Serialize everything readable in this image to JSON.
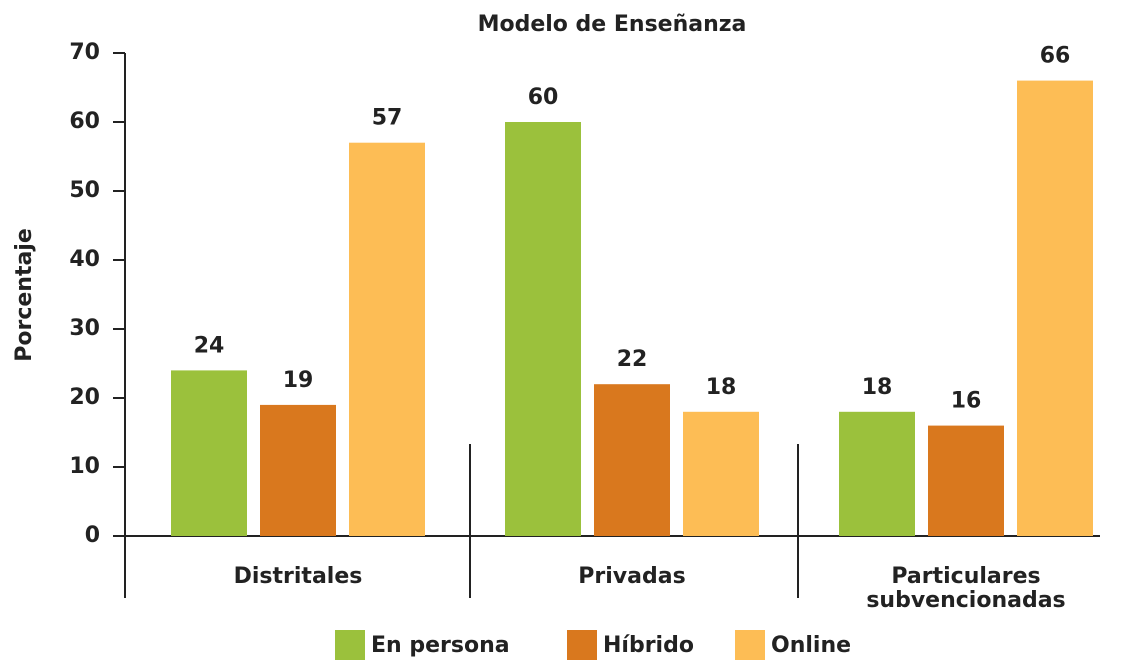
{
  "chart_data": {
    "type": "bar",
    "title": "Modelo de Enseñanza",
    "y_label": "Porcentaje",
    "categories": [
      "Distritales",
      "Privadas",
      "Particulares subvencionadas"
    ],
    "series": [
      {
        "name": "En persona",
        "color": "#9bc13c",
        "values": [
          24,
          60,
          18
        ]
      },
      {
        "name": "Híbrido",
        "color": "#d9781e",
        "values": [
          19,
          22,
          16
        ]
      },
      {
        "name": "Online",
        "color": "#fdbd55",
        "values": [
          57,
          18,
          66
        ]
      }
    ],
    "ylim": [
      0,
      70
    ],
    "yticks": [
      0,
      10,
      20,
      30,
      40,
      50,
      60,
      70
    ],
    "legend": "bottom"
  }
}
